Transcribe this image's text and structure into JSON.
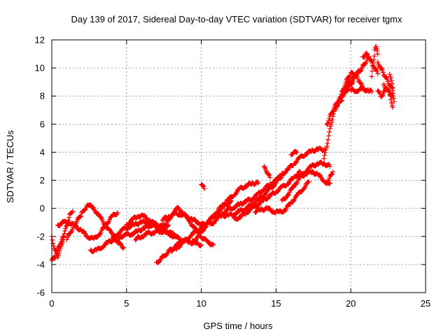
{
  "chart_data": {
    "type": "scatter",
    "title": "Day 139 of 2017, Sidereal Day-to-day VTEC variation (SDTVAR) for receiver tgmx",
    "xlabel": "GPS time / hours",
    "ylabel": "SDTVAR / TECUs",
    "xlim": [
      0,
      25
    ],
    "ylim": [
      -6,
      12
    ],
    "xticks": [
      0,
      5,
      10,
      15,
      20,
      25
    ],
    "yticks": [
      -6,
      -4,
      -2,
      0,
      2,
      4,
      6,
      8,
      10,
      12
    ],
    "xtick_labels": [
      "0",
      "5",
      "10",
      "15",
      "20",
      "25"
    ],
    "ytick_labels": [
      "-6",
      "-4",
      "-2",
      "0",
      "2",
      "4",
      "6",
      "8",
      "10",
      "12"
    ],
    "grid": true,
    "marker": "+",
    "series": [
      {
        "name": "tgmx",
        "color": "#ff0000",
        "tracks": [
          {
            "x": [
              0.0,
              0.2,
              0.4,
              0.6,
              0.8,
              1.0,
              1.2,
              1.4
            ],
            "y": [
              -2.0,
              -3.0,
              -3.4,
              -2.8,
              -2.0,
              -1.2,
              -0.5,
              -0.2
            ]
          },
          {
            "x": [
              0.0,
              0.2,
              0.4,
              0.6,
              0.8
            ],
            "y": [
              -3.7,
              -3.5,
              -3.0,
              -2.4,
              -2.0
            ]
          },
          {
            "x": [
              0.4,
              0.8,
              1.2,
              1.6,
              2.0,
              2.4,
              2.8,
              3.2,
              3.6,
              4.0,
              4.4
            ],
            "y": [
              -1.2,
              -1.0,
              -1.0,
              -1.3,
              -1.6,
              -2.0,
              -2.2,
              -1.8,
              -1.2,
              -0.6,
              -0.3
            ]
          },
          {
            "x": [
              1.0,
              1.5,
              2.0,
              2.4,
              2.8,
              3.2,
              3.6,
              4.0,
              4.4,
              4.8
            ],
            "y": [
              -2.2,
              -1.2,
              -0.4,
              0.3,
              0.0,
              -0.6,
              -1.2,
              -1.8,
              -2.4,
              -2.8
            ]
          },
          {
            "x": [
              2.6,
              3.0,
              3.4,
              3.8,
              4.2,
              4.6,
              5.0,
              5.4,
              5.8,
              6.2,
              6.6,
              7.0
            ],
            "y": [
              -3.0,
              -3.0,
              -2.7,
              -2.4,
              -2.2,
              -2.0,
              -1.9,
              -1.8,
              -1.6,
              -1.4,
              -1.2,
              -1.1
            ]
          },
          {
            "x": [
              4.0,
              4.4,
              4.8,
              5.2,
              5.6,
              6.0,
              6.4,
              6.8,
              7.2,
              7.6,
              8.0,
              8.4
            ],
            "y": [
              -2.2,
              -1.8,
              -1.5,
              -1.3,
              -1.1,
              -1.0,
              -1.0,
              -1.2,
              -1.4,
              -1.6,
              -1.8,
              -2.0
            ]
          },
          {
            "x": [
              5.0,
              5.4,
              5.8,
              6.2,
              6.6,
              7.0,
              7.4,
              7.8
            ],
            "y": [
              -1.2,
              -0.8,
              -0.5,
              -0.6,
              -0.9,
              -1.2,
              -1.3,
              -1.2
            ]
          },
          {
            "x": [
              5.6,
              6.0,
              6.4,
              6.8,
              7.2,
              7.6,
              8.0,
              8.4,
              8.8,
              9.2,
              9.6,
              10.0
            ],
            "y": [
              -2.2,
              -2.0,
              -1.8,
              -1.7,
              -1.6,
              -1.7,
              -1.9,
              -2.1,
              -2.3,
              -2.4,
              -2.5,
              -2.6
            ]
          },
          {
            "x": [
              7.0,
              7.3,
              7.6,
              7.9,
              8.2,
              8.5,
              8.8
            ],
            "y": [
              -3.9,
              -3.6,
              -3.3,
              -3.0,
              -2.8,
              -2.5,
              -2.3
            ]
          },
          {
            "x": [
              7.4,
              7.8,
              8.2,
              8.6,
              9.0,
              9.4,
              9.8,
              10.2
            ],
            "y": [
              -0.8,
              -0.6,
              -0.4,
              -0.4,
              -0.6,
              -0.8,
              -1.0,
              -1.2
            ]
          },
          {
            "x": [
              7.2,
              7.6,
              8.0,
              8.4,
              8.8,
              9.2,
              9.6,
              10.0,
              10.4,
              10.8
            ],
            "y": [
              -1.8,
              -1.2,
              -0.5,
              0.0,
              -0.3,
              -0.9,
              -1.5,
              -2.0,
              -2.4,
              -2.6
            ]
          },
          {
            "x": [
              8.0,
              8.4,
              8.8,
              9.2,
              9.6,
              10.0,
              10.4,
              10.8,
              11.2,
              11.6,
              12.0
            ],
            "y": [
              -3.0,
              -2.8,
              -2.4,
              -2.0,
              -1.7,
              -1.4,
              -1.0,
              -0.6,
              -0.2,
              0.2,
              0.5
            ]
          },
          {
            "x": [
              9.4,
              9.8,
              10.2,
              10.6,
              11.0,
              11.4,
              11.8,
              12.2,
              12.6,
              13.0,
              13.4,
              13.8
            ],
            "y": [
              -2.4,
              -2.0,
              -1.4,
              -0.8,
              -0.3,
              0.2,
              0.6,
              1.0,
              1.4,
              1.6,
              1.8,
              1.8
            ]
          },
          {
            "x": [
              10.0,
              10.2
            ],
            "y": [
              1.8,
              1.4
            ]
          },
          {
            "x": [
              10.6,
              11.0,
              11.4,
              11.8,
              12.2,
              12.6,
              13.0,
              13.4,
              13.8,
              14.2,
              14.6,
              15.0,
              15.4
            ],
            "y": [
              -1.2,
              -0.8,
              -0.4,
              -0.1,
              0.1,
              0.3,
              0.5,
              0.7,
              1.0,
              1.4,
              1.7,
              2.0,
              2.3
            ]
          },
          {
            "x": [
              11.0,
              11.4,
              11.8,
              12.2,
              12.6,
              13.0,
              13.4,
              13.8,
              14.2,
              14.6,
              15.0
            ],
            "y": [
              -0.6,
              -0.5,
              -0.5,
              -0.4,
              -0.2,
              0.0,
              0.3,
              0.6,
              1.0,
              1.4,
              1.8
            ]
          },
          {
            "x": [
              12.2,
              12.6,
              13.0,
              13.4,
              13.8,
              14.2,
              14.6,
              15.0,
              15.4,
              15.8,
              16.2,
              16.6
            ],
            "y": [
              -0.8,
              -0.6,
              -0.3,
              0.0,
              0.3,
              0.6,
              0.9,
              1.2,
              1.5,
              1.8,
              2.2,
              2.6
            ]
          },
          {
            "x": [
              13.6,
              14.0,
              14.4,
              14.8,
              15.2,
              15.6,
              16.0,
              16.4,
              16.8,
              17.2
            ],
            "y": [
              -0.2,
              -0.1,
              0.0,
              -0.2,
              -0.3,
              -0.1,
              0.4,
              0.9,
              1.4,
              1.9
            ]
          },
          {
            "x": [
              14.2,
              14.4,
              14.6
            ],
            "y": [
              2.9,
              2.6,
              2.2
            ]
          },
          {
            "x": [
              15.0,
              15.4,
              15.8,
              16.2,
              16.6,
              17.0,
              17.4,
              17.8,
              18.2
            ],
            "y": [
              2.0,
              2.4,
              2.8,
              3.2,
              3.6,
              3.9,
              4.1,
              4.2,
              4.2
            ]
          },
          {
            "x": [
              15.4,
              15.8,
              16.2,
              16.6,
              17.0,
              17.4,
              17.8,
              18.2,
              18.6
            ],
            "y": [
              0.5,
              1.0,
              1.6,
              2.2,
              2.7,
              3.0,
              3.2,
              3.2,
              3.0
            ]
          },
          {
            "x": [
              16.0,
              16.4
            ],
            "y": [
              3.9,
              4.0
            ]
          },
          {
            "x": [
              16.6,
              17.0,
              17.4,
              17.8,
              18.2,
              18.4,
              18.6
            ],
            "y": [
              2.2,
              2.5,
              2.6,
              2.4,
              2.0,
              1.8,
              1.8
            ]
          },
          {
            "x": [
              18.4,
              18.6,
              18.8
            ],
            "y": [
              1.8,
              2.2,
              2.6
            ]
          },
          {
            "x": [
              18.2,
              18.4,
              18.6,
              18.8,
              19.0,
              19.2,
              19.4
            ],
            "y": [
              3.5,
              4.5,
              5.6,
              6.6,
              7.2,
              7.6,
              7.7
            ]
          },
          {
            "x": [
              18.4,
              18.6,
              18.8,
              19.0,
              19.2,
              19.4,
              19.6,
              19.8,
              20.0,
              20.2,
              20.4
            ],
            "y": [
              6.0,
              6.5,
              7.0,
              7.4,
              7.7,
              8.0,
              8.2,
              8.5,
              8.8,
              9.2,
              9.6
            ]
          },
          {
            "x": [
              19.0,
              19.2,
              19.4,
              19.6,
              19.8,
              20.0,
              20.2,
              20.4,
              20.6,
              20.8,
              21.0
            ],
            "y": [
              7.0,
              7.6,
              8.2,
              8.8,
              9.3,
              9.6,
              9.6,
              9.4,
              9.0,
              8.6,
              8.4
            ]
          },
          {
            "x": [
              19.6,
              19.8,
              20.0,
              20.2,
              20.4,
              20.6,
              20.8,
              21.0,
              21.2
            ],
            "y": [
              8.6,
              8.9,
              9.1,
              9.3,
              9.6,
              9.8,
              10.1,
              10.4,
              10.8
            ]
          },
          {
            "x": [
              20.0,
              20.4,
              20.8,
              21.2,
              21.4
            ],
            "y": [
              8.4,
              8.4,
              8.5,
              8.4,
              8.3
            ]
          },
          {
            "x": [
              20.8,
              21.0,
              21.2,
              21.4,
              21.6,
              21.8
            ],
            "y": [
              10.8,
              11.0,
              10.8,
              10.4,
              10.0,
              9.6
            ]
          },
          {
            "x": [
              21.4,
              21.5,
              21.6,
              21.7,
              21.8
            ],
            "y": [
              9.4,
              10.4,
              11.2,
              11.6,
              11.0
            ]
          },
          {
            "x": [
              21.8,
              22.0,
              22.2,
              22.4,
              22.6,
              22.8
            ],
            "y": [
              10.4,
              10.0,
              9.6,
              9.2,
              8.8,
              8.4
            ]
          },
          {
            "x": [
              21.8,
              22.0,
              22.2,
              22.4,
              22.6,
              22.8
            ],
            "y": [
              8.4,
              8.0,
              8.2,
              8.6,
              8.2,
              7.2
            ]
          },
          {
            "x": [
              22.2,
              22.4,
              22.6,
              22.8
            ],
            "y": [
              8.8,
              8.5,
              8.2,
              8.0
            ]
          },
          {
            "x": [
              22.6,
              22.8,
              22.9
            ],
            "y": [
              9.6,
              8.6,
              7.6
            ]
          }
        ]
      }
    ]
  }
}
